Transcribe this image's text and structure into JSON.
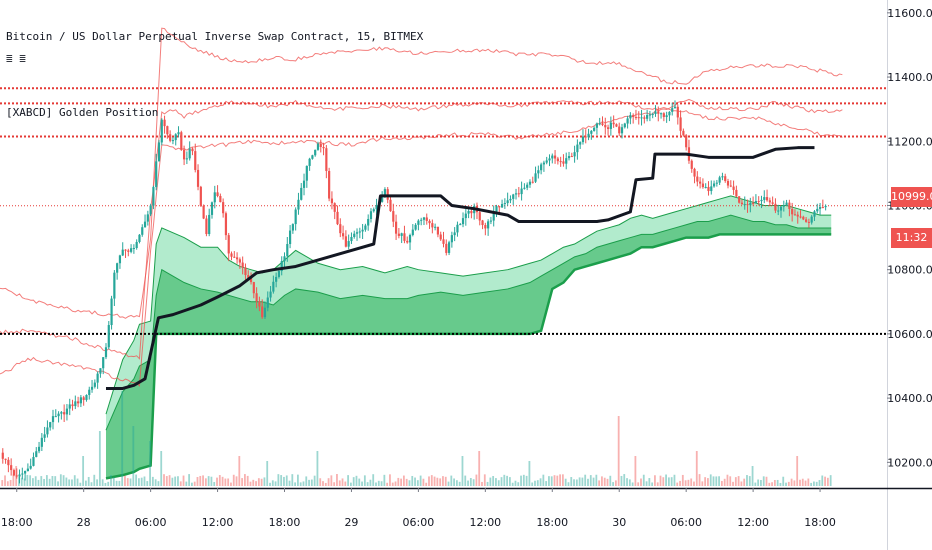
{
  "legend": {
    "title": "Bitcoin / US Dollar Perpetual Inverse Swap Contract, 15, BITMEX",
    "symbol_glyph": "≣ ≣",
    "study": "[XABCD] Golden Position"
  },
  "price_tag": {
    "last": "10999.0",
    "countdown": "11:32"
  },
  "colors": {
    "up_candle": "#26a69a",
    "down_candle": "#ef5350",
    "envelope": "#ef5350",
    "trend_line": "#131722",
    "cloud_light": "#a5e8c4",
    "cloud_dark": "#4cc178",
    "cloud_edge": "#1b9e4b",
    "price_line": "#e53935",
    "support_line": "#000000"
  },
  "chart_data": {
    "type": "candlestick",
    "title": "Bitcoin / US Dollar Perpetual Inverse Swap Contract, 15, BITMEX",
    "study": "[XABCD] Golden Position",
    "y_axis": {
      "ticks": [
        10200,
        10400,
        10600,
        10800,
        11000,
        11200,
        11400,
        11600
      ],
      "tick_labels": [
        "10200.0",
        "10400.0",
        "10600.0",
        "10800.0",
        "11000.0",
        "11200.0",
        "11400.0",
        "11600.0"
      ],
      "range": [
        10120,
        11640
      ]
    },
    "x_axis": {
      "ticks": [
        0,
        6,
        12,
        18,
        24,
        30,
        36,
        42,
        48,
        54,
        60,
        66,
        72
      ],
      "tick_labels": [
        "18:00",
        "28",
        "06:00",
        "12:00",
        "18:00",
        "29",
        "06:00",
        "12:00",
        "18:00",
        "30",
        "06:00",
        "12:00",
        "18:00"
      ],
      "range": [
        -1.5,
        78
      ]
    },
    "last_price": 10999.0,
    "countdown": "11:32",
    "horizontal_lines": [
      {
        "price": 11365,
        "style": "dotted",
        "color": "#e53935"
      },
      {
        "price": 11318,
        "style": "dotted",
        "color": "#e53935"
      },
      {
        "price": 11215,
        "style": "dotted",
        "color": "#e53935"
      },
      {
        "price": 10999,
        "style": "dotted-thin",
        "color": "#e53935"
      },
      {
        "price": 10600,
        "style": "dotted",
        "color": "#000000"
      }
    ],
    "series": [
      {
        "name": "",
        "kind": "close",
        "x": [
          -1.5,
          0,
          1,
          2,
          3,
          4,
          5,
          6,
          7,
          8,
          8.7,
          9.5,
          10,
          11,
          12,
          12.5,
          13,
          13.7,
          14.5,
          15,
          15.7,
          16.5,
          17,
          17.7,
          18.5,
          19,
          20,
          21,
          22,
          22.7,
          23.5,
          24,
          25,
          26,
          27,
          27.5,
          28,
          28.7,
          29.5,
          30,
          31,
          32,
          33,
          34,
          35,
          36,
          37,
          38,
          38.5,
          39,
          40,
          41,
          42,
          43,
          44,
          45,
          46,
          47,
          48,
          49,
          50,
          51,
          52,
          53,
          53.5,
          54,
          55,
          56,
          57,
          58,
          59,
          60,
          60.5,
          61,
          62,
          63,
          64,
          65,
          66,
          67,
          68,
          69,
          70,
          71,
          72,
          72.5
        ],
        "values": [
          10230,
          10150,
          10180,
          10250,
          10330,
          10350,
          10380,
          10400,
          10450,
          10550,
          10780,
          10870,
          10850,
          10900,
          11000,
          11130,
          11270,
          11200,
          11220,
          11140,
          11180,
          11000,
          10920,
          11050,
          10980,
          10850,
          10820,
          10760,
          10650,
          10730,
          10800,
          10850,
          10980,
          11120,
          11190,
          11170,
          11030,
          10950,
          10870,
          10900,
          10930,
          10990,
          11050,
          10920,
          10890,
          10960,
          10950,
          10900,
          10860,
          10910,
          10960,
          10990,
          10930,
          10990,
          11020,
          11040,
          11070,
          11120,
          11150,
          11130,
          11170,
          11220,
          11260,
          11240,
          11260,
          11220,
          11280,
          11270,
          11290,
          11280,
          11300,
          11180,
          11110,
          11080,
          11050,
          11090,
          11060,
          11000,
          11010,
          11030,
          10990,
          11000,
          10960,
          10950,
          11000,
          10999
        ]
      },
      {
        "name": "",
        "kind": "envelope",
        "x": [
          -1.5,
          1,
          3,
          5,
          7,
          9,
          11,
          12,
          13,
          14,
          15,
          17,
          19,
          21,
          23,
          25,
          27,
          30,
          33,
          36,
          39,
          42,
          45,
          48,
          51,
          54,
          57,
          58,
          60,
          62,
          64,
          66,
          68,
          70,
          72,
          74
        ],
        "values": [
          10745,
          10708,
          10688,
          10675,
          10665,
          10656,
          10650,
          10895,
          11555,
          11530,
          11505,
          11475,
          11452,
          11448,
          11460,
          11455,
          11470,
          11482,
          11490,
          11472,
          11480,
          11485,
          11470,
          11470,
          11446,
          11442,
          11402,
          11385,
          11383,
          11420,
          11430,
          11436,
          11436,
          11432,
          11420,
          11404
        ]
      },
      {
        "name": "",
        "kind": "envelope",
        "x": [
          -1.5,
          1,
          3,
          5,
          7,
          9,
          11,
          12,
          13,
          14,
          15,
          17,
          19,
          21,
          23,
          25,
          27,
          30,
          33,
          36,
          39,
          42,
          45,
          48,
          51,
          54,
          57,
          58,
          60,
          62,
          64,
          66,
          68,
          70,
          72,
          74
        ],
        "values": [
          10605,
          10610,
          10598,
          10585,
          10562,
          10541,
          10528,
          10985,
          11285,
          11298,
          11278,
          11300,
          11322,
          11318,
          11308,
          11322,
          11302,
          11302,
          11310,
          11300,
          11312,
          11318,
          11310,
          11322,
          11318,
          11322,
          11298,
          11300,
          11330,
          11305,
          11300,
          11298,
          11322,
          11304,
          11290,
          11298
        ]
      },
      {
        "name": "",
        "kind": "envelope",
        "x": [
          -1.5,
          1,
          3,
          5,
          7,
          9,
          11,
          12,
          13,
          14,
          15,
          17,
          19,
          21,
          23,
          25,
          27,
          30,
          33,
          36,
          39,
          42,
          45,
          48,
          51,
          54,
          57,
          58,
          60,
          62,
          64,
          66,
          68,
          70,
          72,
          74
        ],
        "values": [
          10470,
          10525,
          10512,
          10500,
          10488,
          10462,
          10440,
          10860,
          11192,
          11182,
          11172,
          11186,
          11190,
          11200,
          11192,
          11198,
          11196,
          11190,
          11210,
          11210,
          11220,
          11222,
          11210,
          11222,
          11240,
          11272,
          11290,
          11300,
          11290,
          11272,
          11270,
          11276,
          11256,
          11240,
          11222,
          11212
        ]
      },
      {
        "name": "",
        "kind": "trend",
        "x": [
          8,
          9.5,
          10.5,
          11,
          11.5,
          12.7,
          14,
          16.5,
          18,
          20,
          21.5,
          23,
          25,
          27,
          30,
          32,
          32.6,
          35,
          38,
          39,
          41,
          44,
          45,
          48,
          50,
          52,
          53,
          55,
          55.5,
          57,
          57.2,
          60,
          62,
          66,
          68,
          70,
          71.5
        ],
        "values": [
          10430,
          10430,
          10440,
          10450,
          10460,
          10650,
          10660,
          10690,
          10715,
          10750,
          10790,
          10800,
          10810,
          10830,
          10860,
          10880,
          11030,
          11030,
          11030,
          11000,
          10990,
          10970,
          10950,
          10950,
          10950,
          10950,
          10955,
          10980,
          11080,
          11085,
          11160,
          11160,
          11150,
          11150,
          11175,
          11180,
          11180
        ]
      }
    ],
    "cloud": {
      "x": [
        8,
        9.5,
        10.5,
        11,
        12,
        12.5,
        13,
        15,
        16.5,
        18,
        19,
        20,
        21,
        22,
        23,
        24,
        25,
        27,
        29,
        31,
        33,
        35,
        36,
        38,
        40,
        42,
        44,
        45,
        46,
        47,
        48,
        49,
        50,
        51,
        52,
        53,
        54,
        55,
        56,
        57,
        58,
        59,
        60,
        61,
        62,
        63,
        64,
        65,
        66,
        67,
        68,
        69,
        70,
        71,
        72,
        73
      ],
      "upper": [
        10350,
        10520,
        10580,
        10630,
        10640,
        10880,
        10930,
        10900,
        10870,
        10870,
        10830,
        10810,
        10800,
        10790,
        10800,
        10830,
        10860,
        10820,
        10800,
        10810,
        10790,
        10810,
        10800,
        10790,
        10780,
        10790,
        10800,
        10810,
        10820,
        10830,
        10850,
        10870,
        10880,
        10900,
        10920,
        10930,
        10940,
        10960,
        10970,
        10960,
        10970,
        10980,
        10990,
        11000,
        11010,
        11020,
        11030,
        11020,
        11010,
        11000,
        11000,
        11000,
        10990,
        10980,
        10970,
        10970
      ],
      "middle": [
        10300,
        10420,
        10460,
        10500,
        10520,
        10720,
        10800,
        10760,
        10740,
        10730,
        10720,
        10710,
        10700,
        10700,
        10690,
        10720,
        10740,
        10730,
        10710,
        10720,
        10710,
        10710,
        10720,
        10730,
        10720,
        10730,
        10740,
        10750,
        10760,
        10780,
        10800,
        10820,
        10840,
        10850,
        10870,
        10880,
        10890,
        10900,
        10910,
        10910,
        10920,
        10930,
        10940,
        10950,
        10950,
        10960,
        10970,
        10960,
        10950,
        10950,
        10940,
        10940,
        10930,
        10930,
        10930,
        10930
      ],
      "lower": [
        10150,
        10160,
        10170,
        10180,
        10190,
        10600,
        10600,
        10600,
        10600,
        10600,
        10600,
        10600,
        10600,
        10600,
        10600,
        10600,
        10600,
        10600,
        10600,
        10600,
        10600,
        10600,
        10600,
        10600,
        10600,
        10600,
        10600,
        10600,
        10600,
        10610,
        10740,
        10760,
        10800,
        10810,
        10820,
        10830,
        10840,
        10850,
        10870,
        10870,
        10880,
        10890,
        10900,
        10900,
        10900,
        10910,
        10910,
        10910,
        10910,
        10910,
        10910,
        10910,
        10910,
        10910,
        10910,
        10910
      ]
    },
    "volume_spikes": [
      {
        "x": 0,
        "v": 0.2
      },
      {
        "x": 6,
        "v": 0.3
      },
      {
        "x": 7.5,
        "v": 0.55
      },
      {
        "x": 9.5,
        "v": 0.95
      },
      {
        "x": 10.5,
        "v": 0.6
      },
      {
        "x": 12,
        "v": 0.45
      },
      {
        "x": 13,
        "v": 0.35
      },
      {
        "x": 20,
        "v": 0.3
      },
      {
        "x": 22.5,
        "v": 0.25
      },
      {
        "x": 27,
        "v": 0.35
      },
      {
        "x": 40,
        "v": 0.3
      },
      {
        "x": 41.5,
        "v": 0.35
      },
      {
        "x": 46,
        "v": 0.25
      },
      {
        "x": 54,
        "v": 0.7
      },
      {
        "x": 55.5,
        "v": 0.3
      },
      {
        "x": 61,
        "v": 0.35
      },
      {
        "x": 66,
        "v": 0.2
      },
      {
        "x": 70,
        "v": 0.3
      }
    ]
  }
}
